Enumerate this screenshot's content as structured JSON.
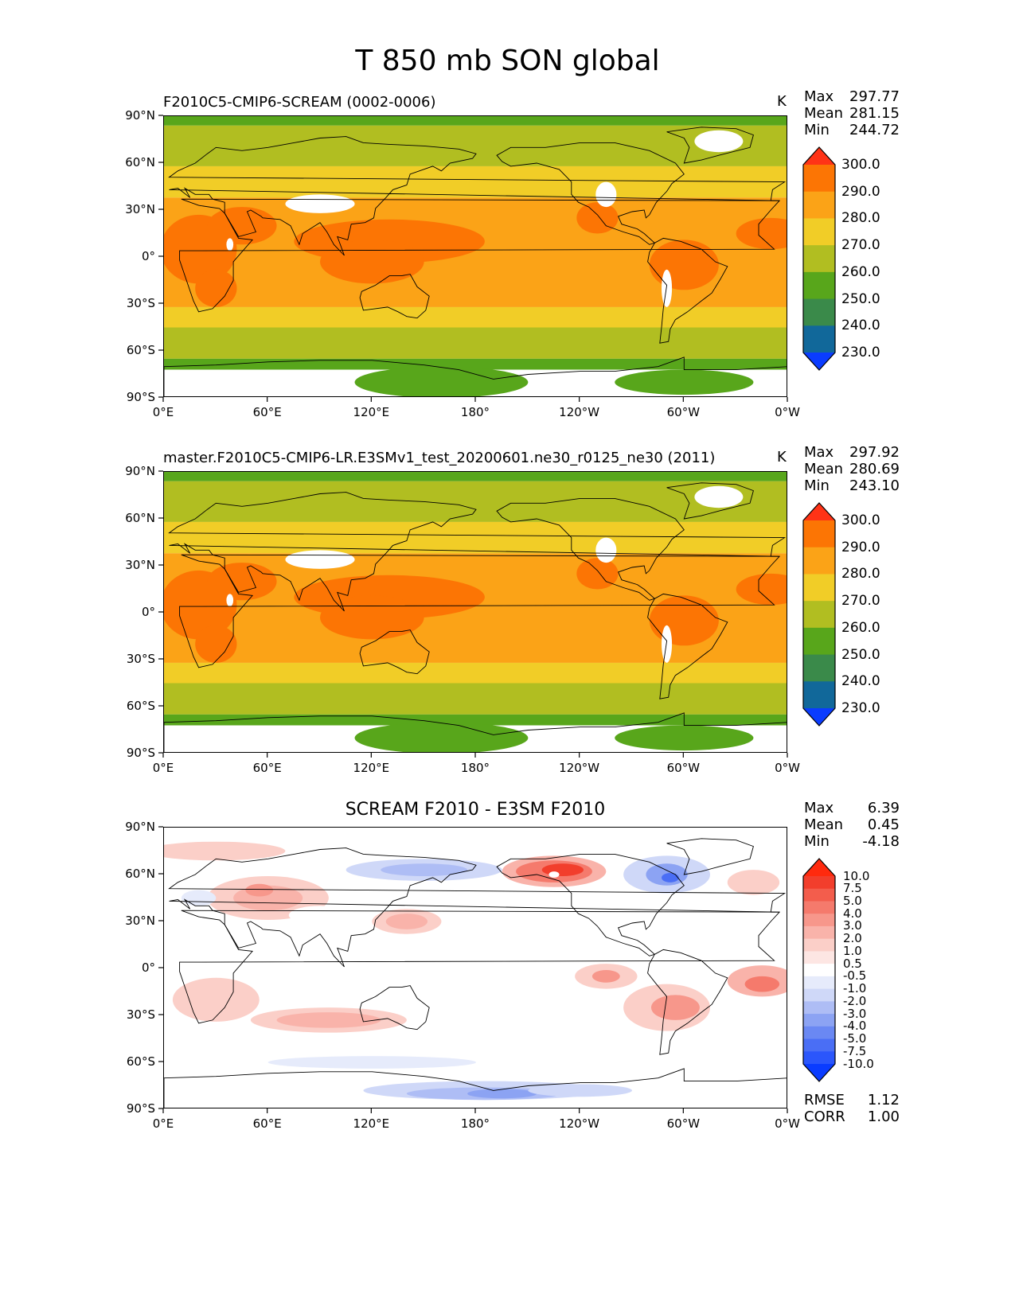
{
  "figure": {
    "title": "T 850 mb SON global"
  },
  "chart_data": [
    {
      "type": "contour-map",
      "title": "F2010C5-CMIP6-SCREAM (0002-0006)",
      "units": "K",
      "stats": {
        "max_label": "Max",
        "max": "297.77",
        "mean_label": "Mean",
        "mean": "281.15",
        "min_label": "Min",
        "min": "244.72"
      },
      "colorbar": {
        "levels": [
          "230.0",
          "240.0",
          "250.0",
          "260.0",
          "270.0",
          "280.0",
          "290.0",
          "300.0"
        ],
        "colors": [
          "#0a3cff",
          "#11689a",
          "#3a8a4a",
          "#58a61b",
          "#b1be21",
          "#f1cd27",
          "#fba317",
          "#fc7504",
          "#ff3316"
        ]
      },
      "xticks": [
        "0°E",
        "60°E",
        "120°E",
        "180°",
        "120°W",
        "60°W",
        "0°W"
      ],
      "yticks": [
        "90°N",
        "60°N",
        "30°N",
        "0°",
        "30°S",
        "60°S",
        "90°S"
      ],
      "xlim": [
        0,
        360
      ],
      "ylim": [
        -90,
        90
      ]
    },
    {
      "type": "contour-map",
      "title": "master.F2010C5-CMIP6-LR.E3SMv1_test_20200601.ne30_r0125_ne30 (2011)",
      "units": "K",
      "stats": {
        "max_label": "Max",
        "max": "297.92",
        "mean_label": "Mean",
        "mean": "280.69",
        "min_label": "Min",
        "min": "243.10"
      },
      "colorbar": {
        "levels": [
          "230.0",
          "240.0",
          "250.0",
          "260.0",
          "270.0",
          "280.0",
          "290.0",
          "300.0"
        ],
        "colors": [
          "#0a3cff",
          "#11689a",
          "#3a8a4a",
          "#58a61b",
          "#b1be21",
          "#f1cd27",
          "#fba317",
          "#fc7504",
          "#ff3316"
        ]
      },
      "xticks": [
        "0°E",
        "60°E",
        "120°E",
        "180°",
        "120°W",
        "60°W",
        "0°W"
      ],
      "yticks": [
        "90°N",
        "60°N",
        "30°N",
        "0°",
        "30°S",
        "60°S",
        "90°S"
      ],
      "xlim": [
        0,
        360
      ],
      "ylim": [
        -90,
        90
      ]
    },
    {
      "type": "contour-map",
      "title": "SCREAM F2010 - E3SM F2010",
      "units": "",
      "stats": {
        "max_label": "Max",
        "max": "6.39",
        "mean_label": "Mean",
        "mean": "0.45",
        "min_label": "Min",
        "min": "-4.18"
      },
      "metrics": {
        "rmse_label": "RMSE",
        "rmse": "1.12",
        "corr_label": "CORR",
        "corr": "1.00"
      },
      "colorbar": {
        "levels": [
          "-10.0",
          "-7.5",
          "-5.0",
          "-4.0",
          "-3.0",
          "-2.0",
          "-1.0",
          "-0.5",
          "0.5",
          "1.0",
          "2.0",
          "3.0",
          "4.0",
          "5.0",
          "7.5",
          "10.0"
        ],
        "colors": [
          "#0a3cff",
          "#2b56fb",
          "#4a6ef5",
          "#6a88f3",
          "#8ca3f3",
          "#aebdf5",
          "#cfd8f8",
          "#e6ebfb",
          "#ffffff",
          "#fde6e3",
          "#fbcfc8",
          "#f9b3aa",
          "#f7978b",
          "#f57a6c",
          "#f35d4c",
          "#f23e2c",
          "#ff2a0e"
        ]
      },
      "xticks": [
        "0°E",
        "60°E",
        "120°E",
        "180°",
        "120°W",
        "60°W",
        "0°W"
      ],
      "yticks": [
        "90°N",
        "60°N",
        "30°N",
        "0°",
        "30°S",
        "60°S",
        "90°S"
      ],
      "xlim": [
        0,
        360
      ],
      "ylim": [
        -90,
        90
      ]
    }
  ]
}
